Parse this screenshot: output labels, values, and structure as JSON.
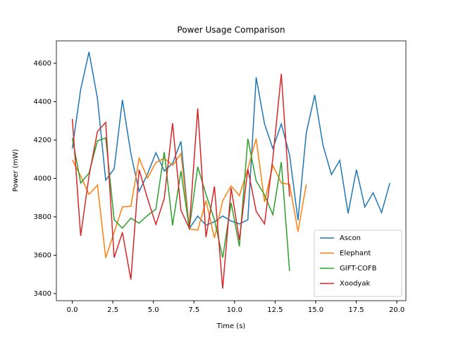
{
  "chart_data": {
    "type": "line",
    "title": "Power Usage Comparison",
    "x_label": "Time (s)",
    "y_label": "Power (mW)",
    "x": [
      0,
      0.52,
      1.03,
      1.55,
      2.06,
      2.58,
      3.09,
      3.61,
      4.12,
      4.64,
      5.15,
      5.67,
      6.18,
      6.7,
      7.21,
      7.73,
      8.24,
      8.76,
      9.27,
      9.79,
      10.3,
      10.82,
      11.33,
      11.85,
      12.36,
      12.88,
      13.39,
      13.91,
      14.42,
      14.94,
      15.45,
      15.97,
      16.48,
      17.0,
      17.51,
      18.03,
      18.54,
      19.06,
      19.57
    ],
    "series": [
      {
        "name": "Ascon",
        "color": "#1f77b4",
        "values": [
          4156,
          4464,
          4659,
          4417,
          3991,
          4050,
          4409,
          4130,
          3932,
          4024,
          4134,
          4039,
          4079,
          4193,
          3738,
          3804,
          3756,
          3774,
          3804,
          3778,
          3763,
          3785,
          4527,
          4284,
          4156,
          4284,
          4123,
          3782,
          4237,
          4435,
          4174,
          4020,
          4094,
          3818,
          4046,
          3851,
          3925,
          3822,
          3976
        ]
      },
      {
        "name": "Elephant",
        "color": "#ff7f0e",
        "values": [
          4097,
          4013,
          3917,
          3965,
          3587,
          3719,
          3851,
          3855,
          4105,
          4002,
          4083,
          4105,
          4068,
          4130,
          3738,
          3730,
          3884,
          3690,
          3884,
          3961,
          3910,
          4050,
          4207,
          3877,
          4068,
          3976,
          3969,
          3723,
          3969,
          null,
          null,
          null,
          null,
          null,
          null,
          null,
          null,
          null,
          null
        ]
      },
      {
        "name": "GIFT-COFB",
        "color": "#2ca02c",
        "values": [
          4211,
          3976,
          4028,
          4196,
          4211,
          3785,
          3741,
          3793,
          3767,
          3807,
          3840,
          4138,
          3756,
          4039,
          3738,
          4061,
          3917,
          3785,
          3587,
          3873,
          3646,
          4207,
          3987,
          3914,
          3811,
          4086,
          3517,
          null,
          null,
          null,
          null,
          null,
          null,
          null,
          null,
          null,
          null,
          null,
          null
        ]
      },
      {
        "name": "Xoodyak",
        "color": "#d62728",
        "values": [
          4310,
          3701,
          4013,
          4244,
          4292,
          3587,
          3719,
          3473,
          4046,
          3895,
          3760,
          3895,
          4288,
          3833,
          3741,
          4365,
          3694,
          3958,
          3426,
          3950,
          3679,
          4050,
          3829,
          3763,
          4105,
          4545,
          3906,
          null,
          null,
          null,
          null,
          null,
          null,
          null,
          null,
          null,
          null,
          null,
          null
        ]
      }
    ],
    "xlim": [
      -0.98,
      20.56
    ],
    "ylim": [
      3363,
      4717
    ],
    "xticks": [
      {
        "value": 0,
        "label": "0.0"
      },
      {
        "value": 2.5,
        "label": "2.5"
      },
      {
        "value": 5,
        "label": "5.0"
      },
      {
        "value": 7.5,
        "label": "7.5"
      },
      {
        "value": 10,
        "label": "10.0"
      },
      {
        "value": 12.5,
        "label": "12.5"
      },
      {
        "value": 15,
        "label": "15.0"
      },
      {
        "value": 17.5,
        "label": "17.5"
      },
      {
        "value": 20,
        "label": "20.0"
      }
    ],
    "yticks": [
      3400,
      3600,
      3800,
      4000,
      4200,
      4400,
      4600
    ],
    "legend": "lower right"
  }
}
